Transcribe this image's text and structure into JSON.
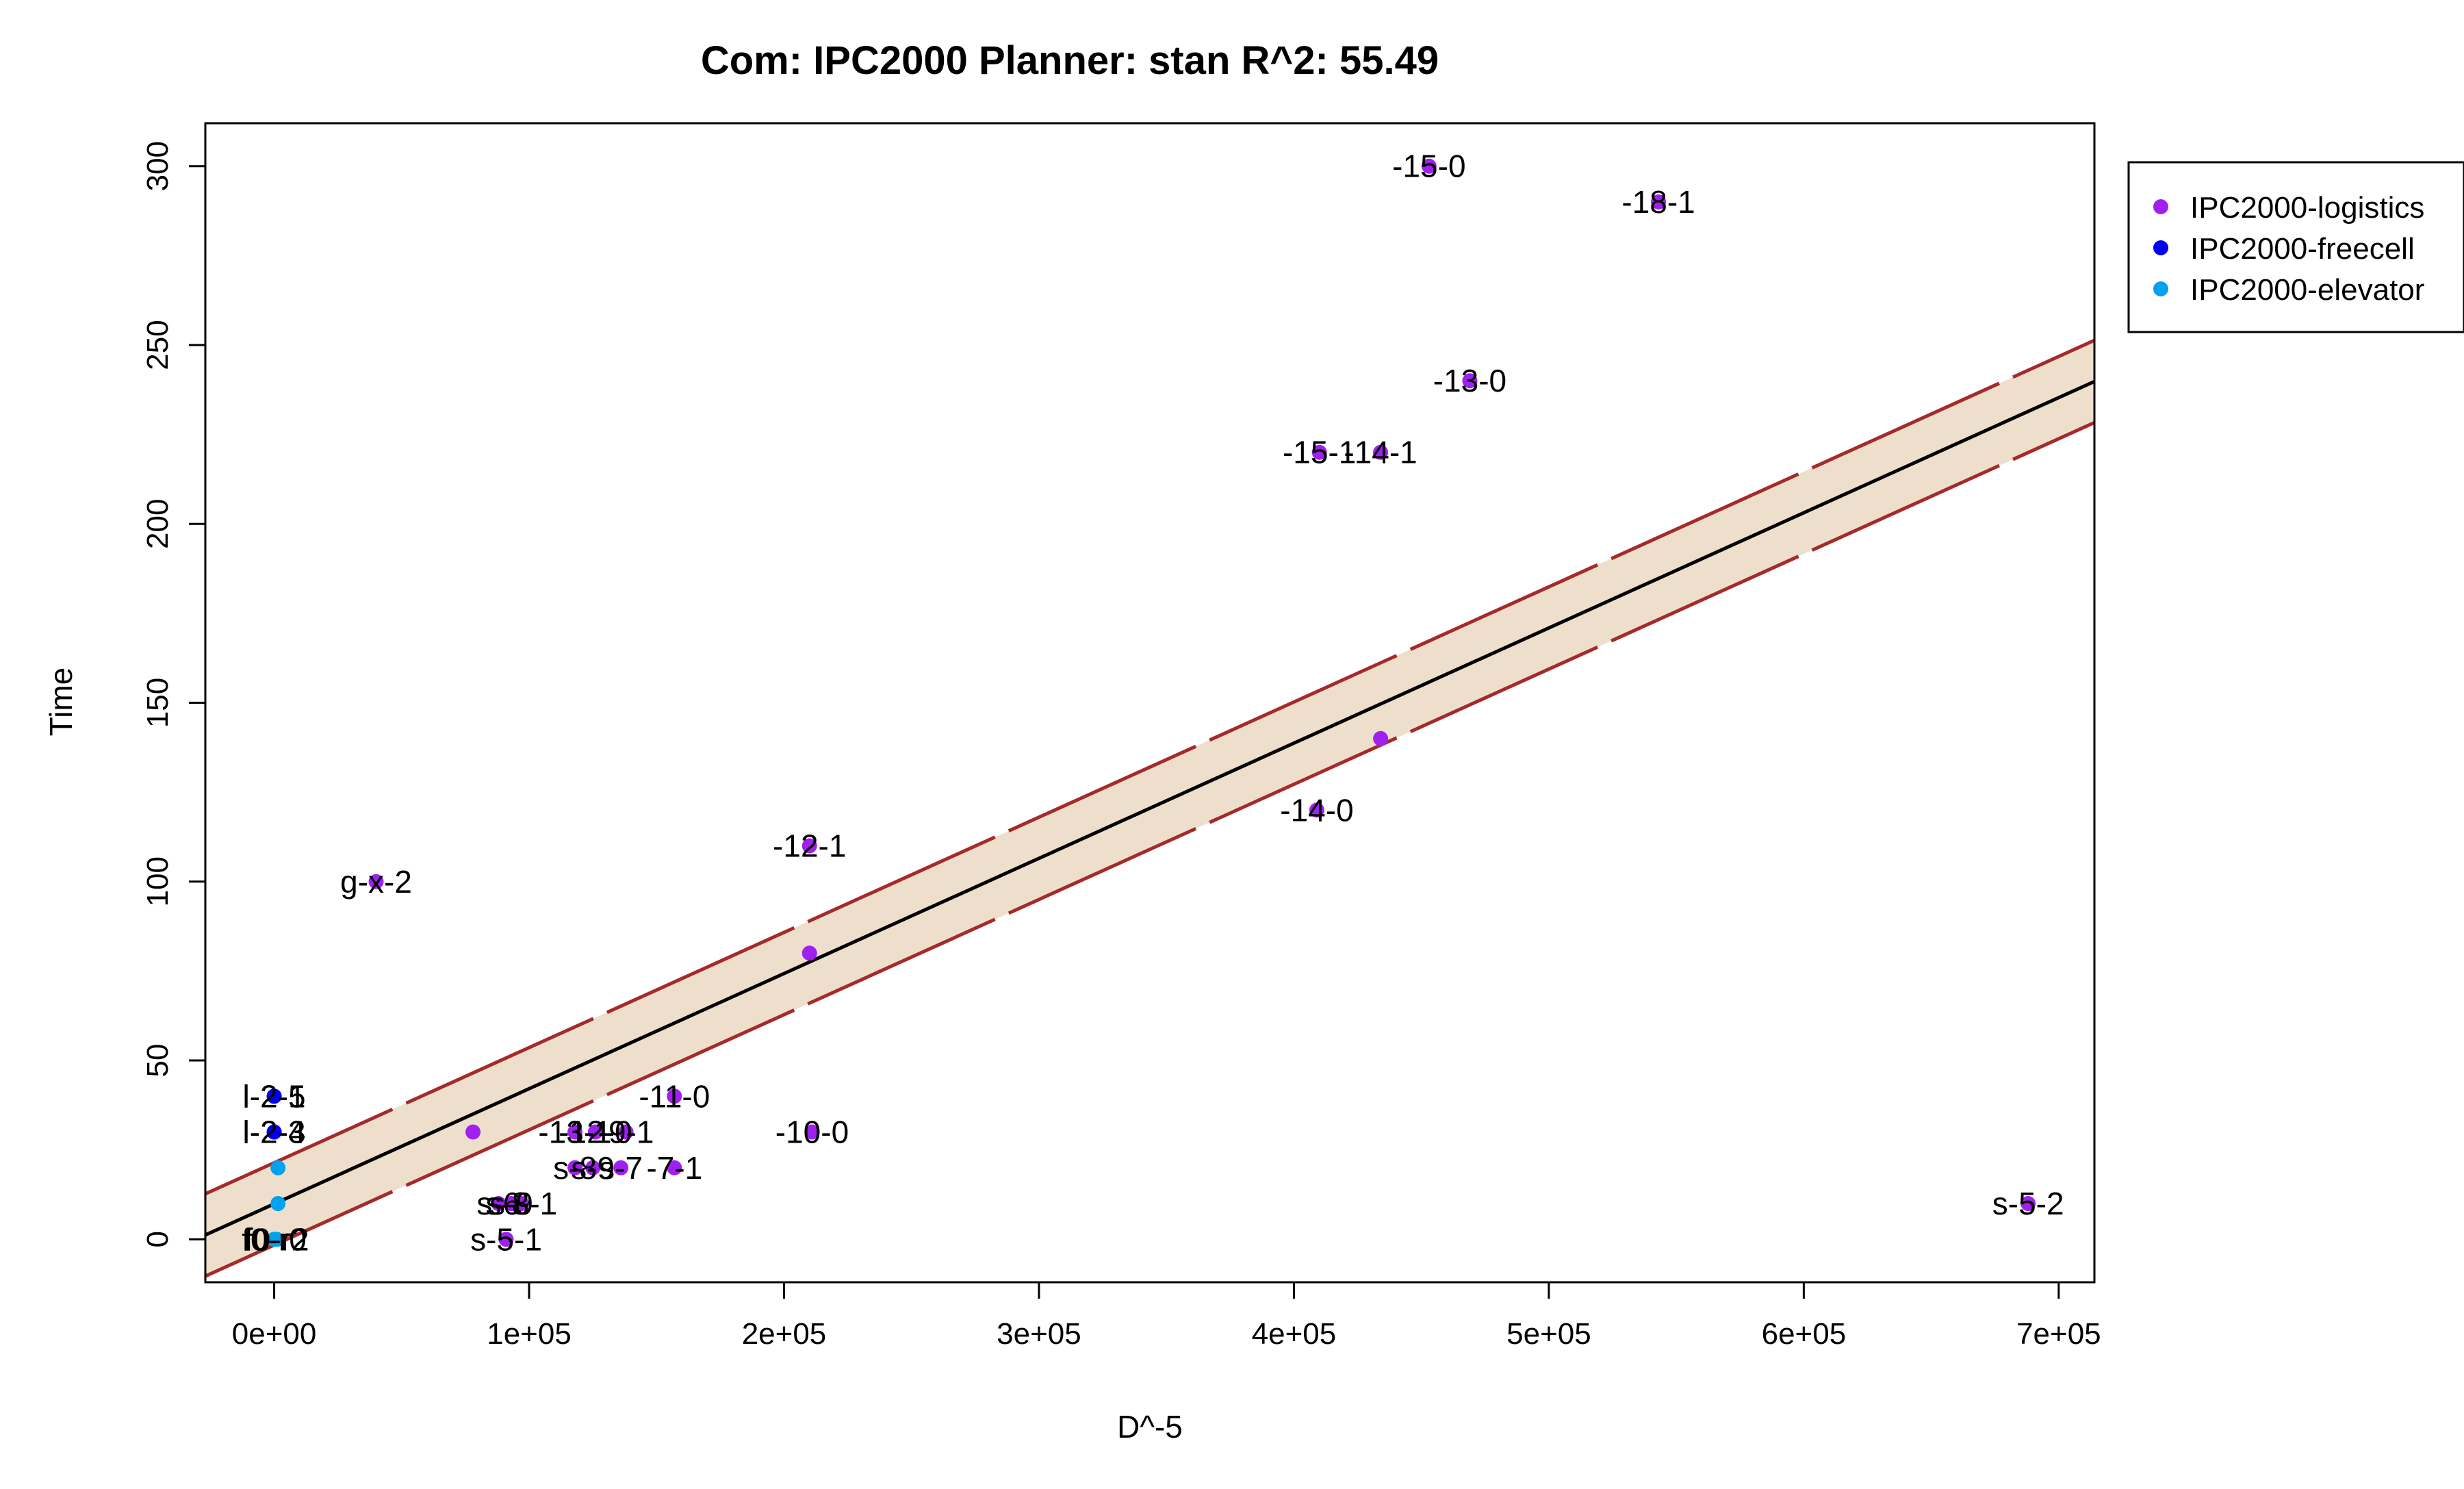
{
  "chart_data": {
    "type": "scatter",
    "title": "Com: IPC2000 Planner: stan R^2: 55.49",
    "xlabel": "D^-5",
    "ylabel": "Time",
    "xlim": [
      -27000,
      714000
    ],
    "ylim": [
      -12,
      312
    ],
    "x_ticks": [
      0,
      100000,
      200000,
      300000,
      400000,
      500000,
      600000,
      700000
    ],
    "x_tick_labels": [
      "0e+00",
      "1e+05",
      "2e+05",
      "3e+05",
      "4e+05",
      "5e+05",
      "6e+05",
      "7e+05"
    ],
    "y_ticks": [
      0,
      50,
      100,
      150,
      200,
      250,
      300
    ],
    "y_tick_labels": [
      "0",
      "50",
      "100",
      "150",
      "200",
      "250",
      "300"
    ],
    "grid": false,
    "legend_position": "top-right, outside plot",
    "series": [
      {
        "name": "IPC2000-logistics",
        "color": "#a020f0"
      },
      {
        "name": "IPC2000-freecell",
        "color": "#0000ee"
      },
      {
        "name": "IPC2000-elevator",
        "color": "#00a2ee"
      }
    ],
    "points": [
      {
        "x": 453000,
        "y": 300,
        "series": 0,
        "label": "-15-0"
      },
      {
        "x": 543000,
        "y": 290,
        "series": 0,
        "label": "-18-1"
      },
      {
        "x": 469000,
        "y": 240,
        "series": 0,
        "label": "-13-0"
      },
      {
        "x": 410000,
        "y": 220,
        "series": 0,
        "label": "-15-1"
      },
      {
        "x": 434000,
        "y": 220,
        "series": 0,
        "label": "-14-1"
      },
      {
        "x": 434000,
        "y": 140,
        "series": 0,
        "label": ""
      },
      {
        "x": 409000,
        "y": 120,
        "series": 0,
        "label": "-14-0"
      },
      {
        "x": 210000,
        "y": 110,
        "series": 0,
        "label": "-12-1"
      },
      {
        "x": 210000,
        "y": 80,
        "series": 0,
        "label": ""
      },
      {
        "x": 40000,
        "y": 100,
        "series": 0,
        "label": "g-x-2"
      },
      {
        "x": 78000,
        "y": 30,
        "series": 0,
        "label": ""
      },
      {
        "x": 157000,
        "y": 40,
        "series": 0,
        "label": "-11-0"
      },
      {
        "x": 211000,
        "y": 30,
        "series": 0,
        "label": "-10-0"
      },
      {
        "x": 118000,
        "y": 30,
        "series": 0,
        "label": "-13-1"
      },
      {
        "x": 126000,
        "y": 30,
        "series": 0,
        "label": "-12-0"
      },
      {
        "x": 138000,
        "y": 30,
        "series": 0,
        "label": "-9-1"
      },
      {
        "x": 118000,
        "y": 20,
        "series": 0,
        "label": "s-8"
      },
      {
        "x": 125000,
        "y": 20,
        "series": 0,
        "label": "s-9"
      },
      {
        "x": 136000,
        "y": 20,
        "series": 0,
        "label": "s-7"
      },
      {
        "x": 157000,
        "y": 20,
        "series": 0,
        "label": "-7-1"
      },
      {
        "x": 88000,
        "y": 10,
        "series": 0,
        "label": "s-6"
      },
      {
        "x": 93000,
        "y": 10,
        "series": 0,
        "label": "s-9"
      },
      {
        "x": 97000,
        "y": 10,
        "series": 0,
        "label": "s-8-1"
      },
      {
        "x": 91000,
        "y": 0,
        "series": 0,
        "label": "s-5-1"
      },
      {
        "x": 688000,
        "y": 10,
        "series": 0,
        "label": "s-5-2"
      },
      {
        "x": 0,
        "y": 40,
        "series": 1,
        "label": "l-2-5"
      },
      {
        "x": 0,
        "y": 40,
        "series": 1,
        "label": "l-2-1"
      },
      {
        "x": 0,
        "y": 30,
        "series": 1,
        "label": "l-2-3"
      },
      {
        "x": 0,
        "y": 30,
        "series": 1,
        "label": "l-2-4"
      },
      {
        "x": 1500,
        "y": 20,
        "series": 2,
        "label": ""
      },
      {
        "x": 1500,
        "y": 10,
        "series": 2,
        "label": ""
      },
      {
        "x": 0,
        "y": 0,
        "series": 2,
        "label": "f0-r0"
      },
      {
        "x": 1000,
        "y": 0,
        "series": 2,
        "label": "f0-r2"
      }
    ],
    "fit_line": {
      "intercept": 9.9,
      "slope": 0.000322,
      "color": "#000000"
    },
    "confidence_band": {
      "half_width": 11.5,
      "fill": "#eedfcc",
      "border": "#a52a2a"
    }
  }
}
